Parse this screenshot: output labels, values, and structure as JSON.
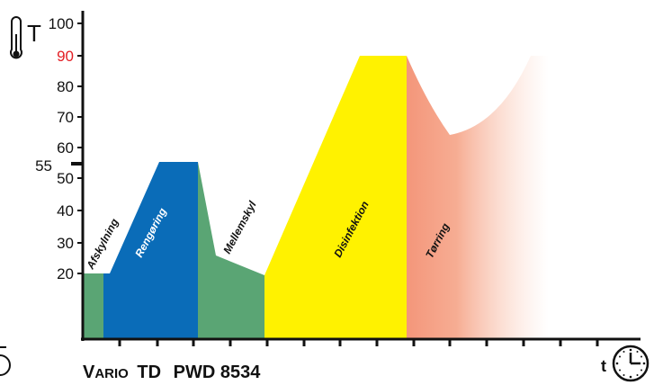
{
  "y_axis": {
    "symbol": "T",
    "ticks": [
      "100",
      "90",
      "80",
      "70",
      "60",
      "50",
      "40",
      "30",
      "20"
    ],
    "highlight_tick": "90",
    "highlight_color": "#e31e24",
    "marker_label": "55"
  },
  "x_axis": {
    "symbol": "t"
  },
  "phases": [
    {
      "label": "Afskylning",
      "color": "#5aa574",
      "label_color": "#111111"
    },
    {
      "label": "Rengøring",
      "color": "#0a6cb8",
      "label_color": "#ffffff"
    },
    {
      "label": "Mellemskyl",
      "color": "#5aa574",
      "label_color": "#111111"
    },
    {
      "label": "Disinfektion",
      "color": "#fff200",
      "label_color": "#111111"
    },
    {
      "label": "Tørring",
      "color": "#f4967a",
      "label_color": "#111111"
    }
  ],
  "title": {
    "brand_first": "V",
    "brand_rest": "ARIO",
    "model": "TD",
    "code": "PWD 8534"
  },
  "icons": [
    "thermometer-icon",
    "clock-icon"
  ]
}
